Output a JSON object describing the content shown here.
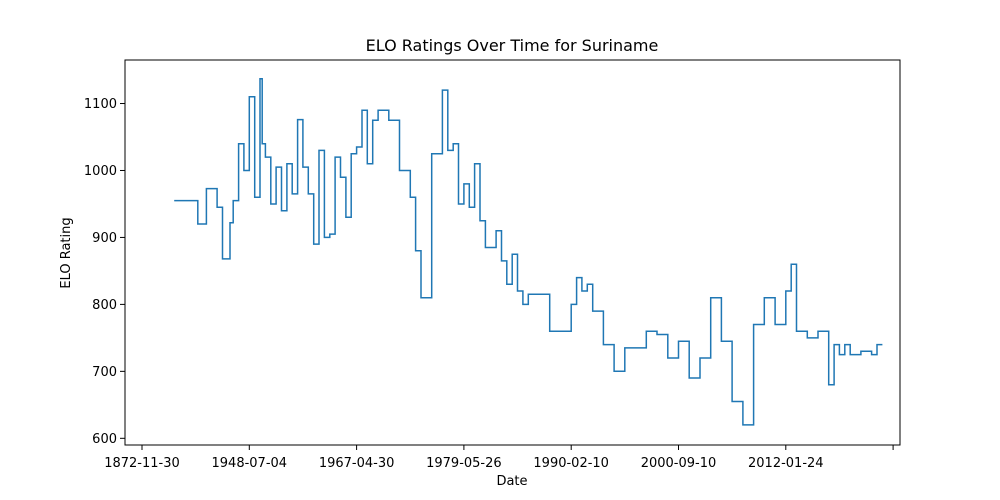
{
  "chart_data": {
    "type": "line",
    "title": "ELO Ratings Over Time for Suriname",
    "xlabel": "Date",
    "ylabel": "ELO Rating",
    "x_ticks": [
      "1872-11-30",
      "1948-07-04",
      "1967-04-30",
      "1979-05-26",
      "1990-02-10",
      "2000-09-10",
      "2012-01-24",
      ""
    ],
    "y_ticks": [
      600,
      700,
      800,
      900,
      1000,
      1100
    ],
    "ylim": [
      590,
      1165
    ],
    "grid": false,
    "legend": "none",
    "line_color": "#1f77b4",
    "series": [
      {
        "x_ticks_index": [
          0.3,
          0.5,
          0.52,
          0.6,
          0.7,
          0.75,
          0.82,
          0.85,
          0.9,
          0.95,
          1.0,
          1.05,
          1.1,
          1.12,
          1.15,
          1.2,
          1.25,
          1.3,
          1.35,
          1.4,
          1.45,
          1.5,
          1.55,
          1.6,
          1.65,
          1.7,
          1.75,
          1.8,
          1.85,
          1.9,
          1.95,
          2.0,
          2.05,
          2.1,
          2.15,
          2.2,
          2.3,
          2.4,
          2.5,
          2.55,
          2.6,
          2.7,
          2.8,
          2.85,
          2.9,
          2.95,
          3.0,
          3.05,
          3.1,
          3.15,
          3.2,
          3.25,
          3.3,
          3.35,
          3.4,
          3.45,
          3.5,
          3.55,
          3.6,
          3.7,
          3.8,
          3.9,
          4.0,
          4.05,
          4.1,
          4.15,
          4.2,
          4.3,
          4.4,
          4.5,
          4.6,
          4.7,
          4.8,
          4.9,
          5.0,
          5.1,
          5.2,
          5.3,
          5.4,
          5.5,
          5.6,
          5.7,
          5.8,
          5.9,
          6.0,
          6.05,
          6.1,
          6.2,
          6.3,
          6.4,
          6.45,
          6.5,
          6.55,
          6.6,
          6.7,
          6.8,
          6.85,
          6.9
        ],
        "values": [
          955,
          955,
          920,
          973,
          945,
          868,
          922,
          955,
          1040,
          1000,
          1110,
          960,
          1137,
          1040,
          1020,
          950,
          1005,
          940,
          1010,
          965,
          1076,
          1005,
          965,
          890,
          1030,
          900,
          905,
          1020,
          990,
          930,
          1025,
          1035,
          1090,
          1010,
          1075,
          1090,
          1075,
          1000,
          960,
          880,
          810,
          1025,
          1120,
          1030,
          1040,
          950,
          980,
          945,
          1010,
          925,
          885,
          885,
          910,
          865,
          830,
          875,
          820,
          800,
          815,
          815,
          760,
          760,
          800,
          840,
          820,
          830,
          790,
          740,
          700,
          735,
          735,
          760,
          755,
          720,
          745,
          690,
          720,
          810,
          745,
          655,
          620,
          770,
          810,
          770,
          820,
          860,
          760,
          750,
          760,
          680,
          740,
          725,
          740,
          725,
          730,
          725,
          740,
          740
        ]
      }
    ]
  }
}
